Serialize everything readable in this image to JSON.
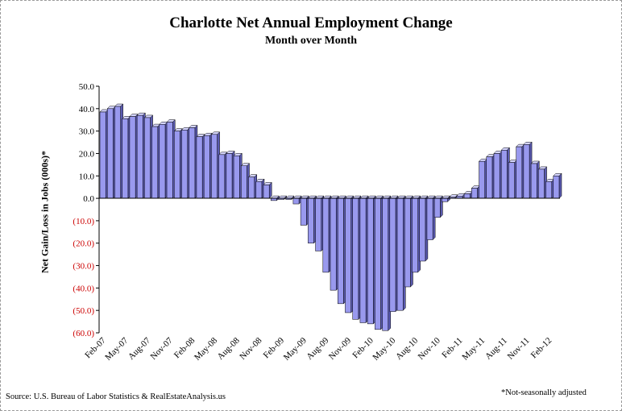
{
  "chart_data": {
    "type": "bar",
    "title": "Charlotte Net Annual Employment Change",
    "subtitle": "Month over Month",
    "ylabel": "Net Gain/Loss in Jobs (000s)*",
    "source": "Source: U.S. Bureau of Labor Statistics & RealEstateAnalysis.us",
    "note": "*Not-seasonally adjusted",
    "ylim": [
      -60,
      50
    ],
    "ytick_values": [
      50,
      40,
      30,
      20,
      10,
      0,
      -10,
      -20,
      -30,
      -40,
      -50,
      -60
    ],
    "ytick_labels": [
      "50.0",
      "40.0",
      "30.0",
      "20.0",
      "10.0",
      "0.0",
      "(10.0)",
      "(20.0)",
      "(30.0)",
      "(40.0)",
      "(50.0)",
      "(60.0)"
    ],
    "xtick_labels": [
      "Feb-07",
      "May-07",
      "Aug-07",
      "Nov-07",
      "Feb-08",
      "May-08",
      "Aug-08",
      "Nov-08",
      "Feb-09",
      "May-09",
      "Aug-09",
      "Nov-09",
      "Feb-10",
      "May-10",
      "Aug-10",
      "Nov-10",
      "Feb-11",
      "May-11",
      "Aug-11",
      "Nov-11",
      "Feb-12"
    ],
    "categories": [
      "Feb-07",
      "Mar-07",
      "Apr-07",
      "May-07",
      "Jun-07",
      "Jul-07",
      "Aug-07",
      "Sep-07",
      "Oct-07",
      "Nov-07",
      "Dec-07",
      "Jan-08",
      "Feb-08",
      "Mar-08",
      "Apr-08",
      "May-08",
      "Jun-08",
      "Jul-08",
      "Aug-08",
      "Sep-08",
      "Oct-08",
      "Nov-08",
      "Dec-08",
      "Jan-09",
      "Feb-09",
      "Mar-09",
      "Apr-09",
      "May-09",
      "Jun-09",
      "Jul-09",
      "Aug-09",
      "Sep-09",
      "Oct-09",
      "Nov-09",
      "Dec-09",
      "Jan-10",
      "Feb-10",
      "Mar-10",
      "Apr-10",
      "May-10",
      "Jun-10",
      "Jul-10",
      "Aug-10",
      "Sep-10",
      "Oct-10",
      "Nov-10",
      "Dec-10",
      "Jan-11",
      "Feb-11",
      "Mar-11",
      "Apr-11",
      "May-11",
      "Jun-11",
      "Jul-11",
      "Aug-11",
      "Sep-11",
      "Oct-11",
      "Nov-11",
      "Dec-11",
      "Jan-12",
      "Feb-12",
      "Mar-12"
    ],
    "values": [
      38.5,
      40,
      41,
      35.5,
      36.5,
      37,
      36,
      32,
      33,
      34,
      30,
      30.5,
      31.5,
      27.5,
      28,
      28.5,
      19.5,
      20,
      19,
      14.5,
      9.5,
      7.5,
      6,
      -1,
      -0.5,
      -0.5,
      -2.5,
      -12,
      -20,
      -23.5,
      -33,
      -41,
      -47,
      -51,
      -54,
      -55.5,
      -56,
      -58.5,
      -59,
      -50.5,
      -50,
      -39.5,
      -33,
      -28,
      -18.5,
      -8.5,
      -1.5,
      0.5,
      1,
      2,
      4.5,
      16.5,
      18.5,
      20,
      21.5,
      16,
      23,
      24,
      15.5,
      13,
      7.5,
      10
    ]
  }
}
